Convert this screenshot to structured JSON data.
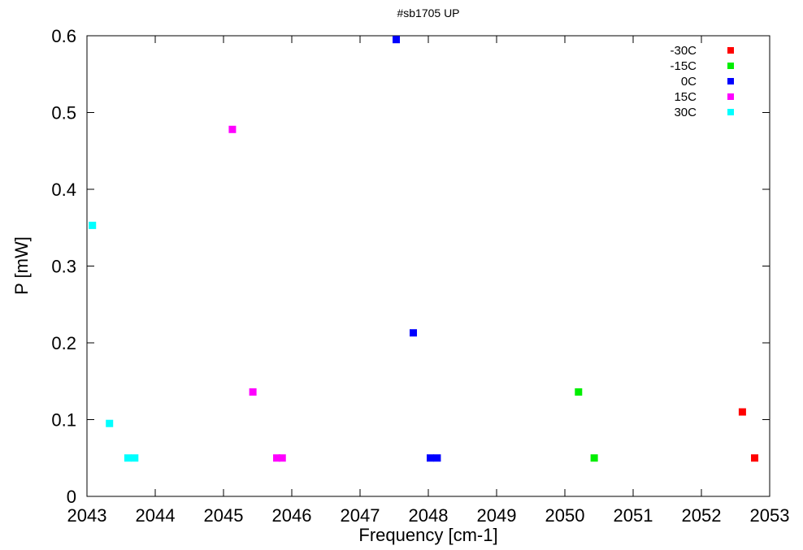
{
  "chart_data": {
    "type": "scatter",
    "title": "#sb1705 UP",
    "xlabel": "Frequency [cm-1]",
    "ylabel": "P [mW]",
    "xlim": [
      2043,
      2053
    ],
    "ylim": [
      0,
      0.6
    ],
    "xticks": [
      "2043",
      "2044",
      "2045",
      "2046",
      "2047",
      "2048",
      "2049",
      "2050",
      "2051",
      "2052",
      "2053"
    ],
    "yticks": [
      "0",
      "0.1",
      "0.2",
      "0.3",
      "0.4",
      "0.5",
      "0.6"
    ],
    "grid": false,
    "legend_position": "top-right",
    "series": [
      {
        "name": "-30C",
        "color": "#ff0000",
        "points": [
          [
            2052.6,
            0.11
          ],
          [
            2052.78,
            0.05
          ]
        ]
      },
      {
        "name": "-15C",
        "color": "#00ee00",
        "points": [
          [
            2050.2,
            0.136
          ],
          [
            2050.43,
            0.05
          ]
        ]
      },
      {
        "name": "0C",
        "color": "#0000ff",
        "points": [
          [
            2047.53,
            0.595
          ],
          [
            2047.78,
            0.213
          ],
          [
            2048.03,
            0.05
          ],
          [
            2048.13,
            0.05
          ]
        ]
      },
      {
        "name": "15C",
        "color": "#ff00ff",
        "points": [
          [
            2045.13,
            0.478
          ],
          [
            2045.43,
            0.136
          ],
          [
            2045.78,
            0.05
          ],
          [
            2045.86,
            0.05
          ]
        ]
      },
      {
        "name": "30C",
        "color": "#00ffff",
        "points": [
          [
            2043.08,
            0.353
          ],
          [
            2043.33,
            0.095
          ],
          [
            2043.6,
            0.05
          ],
          [
            2043.7,
            0.05
          ]
        ]
      }
    ]
  }
}
